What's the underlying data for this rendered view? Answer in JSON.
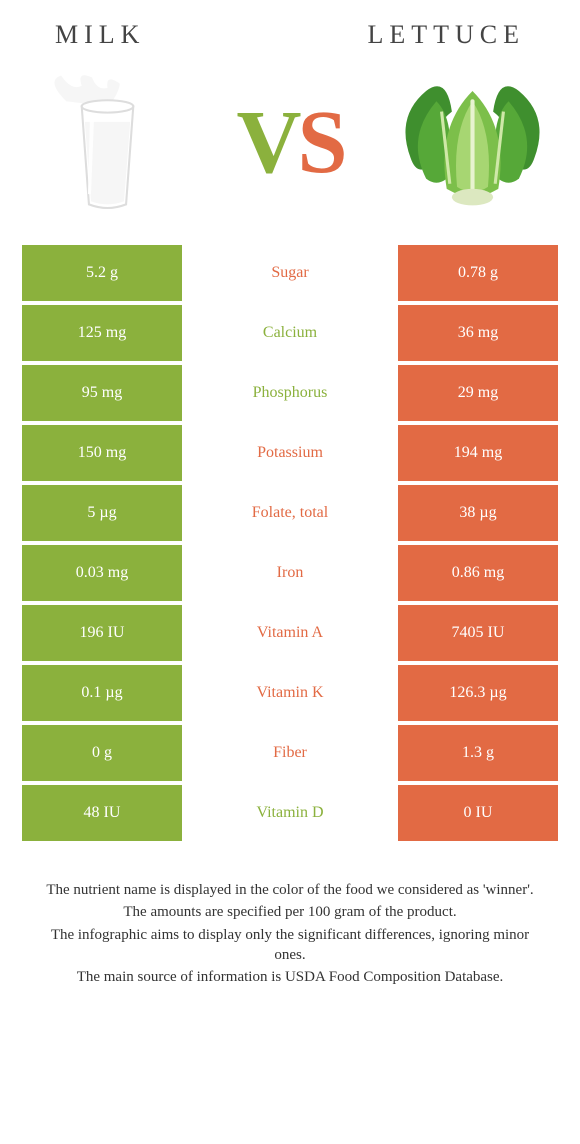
{
  "titles": {
    "left": "Milk",
    "right": "Lettuce"
  },
  "vs": {
    "v": "V",
    "s": "S"
  },
  "colors": {
    "left": "#8bb13d",
    "right": "#e26a44",
    "text": "#333333",
    "background": "#ffffff"
  },
  "images": {
    "left_alt": "glass of milk",
    "right_alt": "head of lettuce"
  },
  "rows": [
    {
      "left": "5.2 g",
      "label": "Sugar",
      "right": "0.78 g",
      "winner": "right"
    },
    {
      "left": "125 mg",
      "label": "Calcium",
      "right": "36 mg",
      "winner": "left"
    },
    {
      "left": "95 mg",
      "label": "Phosphorus",
      "right": "29 mg",
      "winner": "left"
    },
    {
      "left": "150 mg",
      "label": "Potassium",
      "right": "194 mg",
      "winner": "right"
    },
    {
      "left": "5 µg",
      "label": "Folate, total",
      "right": "38 µg",
      "winner": "right"
    },
    {
      "left": "0.03 mg",
      "label": "Iron",
      "right": "0.86 mg",
      "winner": "right"
    },
    {
      "left": "196 IU",
      "label": "Vitamin A",
      "right": "7405 IU",
      "winner": "right"
    },
    {
      "left": "0.1 µg",
      "label": "Vitamin K",
      "right": "126.3 µg",
      "winner": "right"
    },
    {
      "left": "0 g",
      "label": "Fiber",
      "right": "1.3 g",
      "winner": "right"
    },
    {
      "left": "48 IU",
      "label": "Vitamin D",
      "right": "0 IU",
      "winner": "left"
    }
  ],
  "footer": [
    "The nutrient name is displayed in the color of the food we considered as 'winner'.",
    "The amounts are specified per 100 gram of the product.",
    "The infographic aims to display only the significant differences, ignoring minor ones.",
    "The main source of information is USDA Food Composition Database."
  ]
}
